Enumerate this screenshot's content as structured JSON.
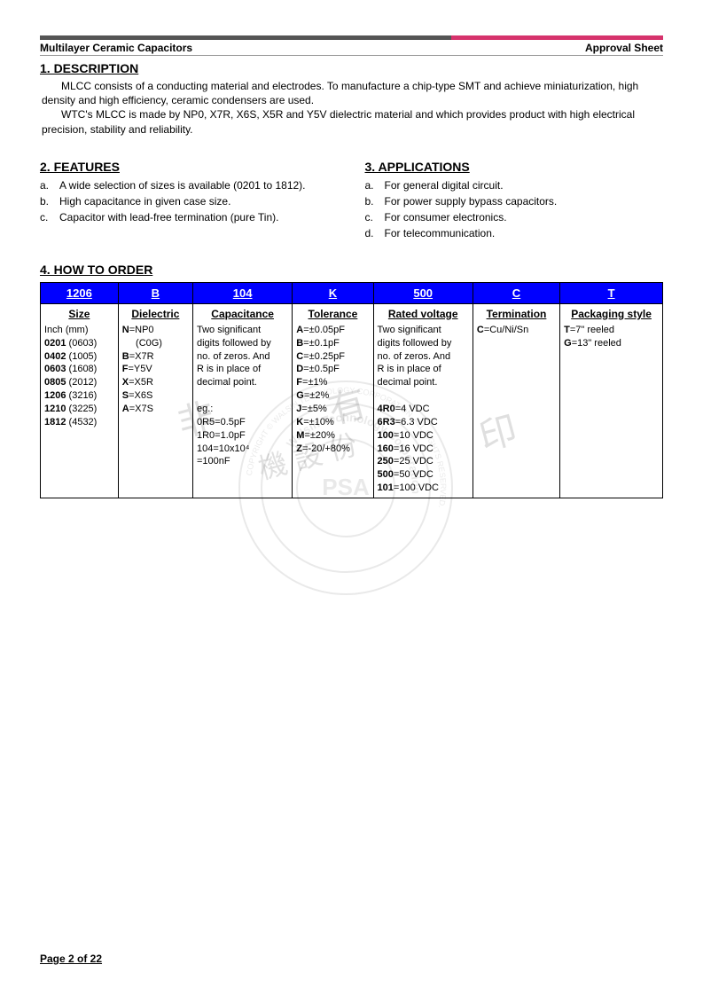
{
  "header": {
    "left": "Multilayer Ceramic Capacitors",
    "right": "Approval Sheet"
  },
  "sections": {
    "s1": {
      "title": "1. DESCRIPTION",
      "p1": "MLCC consists of a conducting material and electrodes. To manufacture a chip-type SMT and achieve miniaturization, high density and high efficiency, ceramic condensers are used.",
      "p2": "WTC's MLCC is made by NP0, X7R, X6S, X5R and Y5V dielectric material and which provides product with high electrical precision, stability and reliability."
    },
    "s2": {
      "title": "2. FEATURES",
      "items": [
        "A wide selection of sizes is available (0201 to 1812).",
        "High capacitance in given case size.",
        "Capacitor with lead-free termination (pure Tin)."
      ]
    },
    "s3": {
      "title": "3. APPLICATIONS",
      "items": [
        "For general digital circuit.",
        "For power supply bypass capacitors.",
        "For consumer electronics.",
        "For telecommunication."
      ]
    },
    "s4": {
      "title": "4. HOW TO ORDER"
    }
  },
  "order_table": {
    "header_bg": "#0000ff",
    "header_color": "#ffffff",
    "border_color": "#000000",
    "col_widths": [
      "12.5%",
      "12%",
      "16%",
      "13%",
      "16%",
      "14%",
      "16.5%"
    ],
    "headers": [
      "1206",
      "B",
      "104",
      "K",
      "500",
      "C",
      "T"
    ],
    "subheaders": [
      "Size",
      "Dielectric",
      "Capacitance",
      "Tolerance",
      "Rated voltage",
      "Termination",
      "Packaging style"
    ],
    "cols": {
      "size": {
        "lines": [
          {
            "pre": "Inch (mm)",
            "code": "",
            "post": ""
          },
          {
            "code": "0201",
            "post": " (0603)"
          },
          {
            "code": "0402",
            "post": " (1005)"
          },
          {
            "code": "0603",
            "post": " (1608)"
          },
          {
            "code": "0805",
            "post": " (2012)"
          },
          {
            "code": "1206",
            "post": " (3216)"
          },
          {
            "code": "1210",
            "post": " (3225)"
          },
          {
            "code": "1812",
            "post": " (4532)"
          }
        ]
      },
      "dielectric": {
        "lines": [
          {
            "code": "N",
            "post": "=NP0"
          },
          {
            "pre": "     (C0G)",
            "code": "",
            "post": ""
          },
          {
            "code": "B",
            "post": "=X7R"
          },
          {
            "code": "F",
            "post": "=Y5V"
          },
          {
            "code": "X",
            "post": "=X5R"
          },
          {
            "code": "S",
            "post": "=X6S"
          },
          {
            "code": "A",
            "post": "=X7S"
          }
        ]
      },
      "capacitance": {
        "text": [
          "Two significant",
          "digits followed by",
          "no. of zeros. And",
          "R is in place of",
          "decimal point.",
          "",
          "eg.:",
          "0R5=0.5pF",
          "1R0=1.0pF",
          "104=10x10⁴",
          "     =100nF"
        ]
      },
      "tolerance": {
        "lines": [
          {
            "code": "A",
            "post": "=±0.05pF"
          },
          {
            "code": "B",
            "post": "=±0.1pF"
          },
          {
            "code": "C",
            "post": "=±0.25pF"
          },
          {
            "code": "D",
            "post": "=±0.5pF"
          },
          {
            "code": "F",
            "post": "=±1%"
          },
          {
            "code": "G",
            "post": "=±2%"
          },
          {
            "code": "J",
            "post": "=±5%"
          },
          {
            "code": "K",
            "post": "=±10%"
          },
          {
            "code": "M",
            "post": "=±20%"
          },
          {
            "code": "Z",
            "post": "=-20/+80%"
          }
        ]
      },
      "voltage": {
        "text": [
          "Two significant",
          "digits followed by",
          "no. of zeros. And",
          "R is in place of",
          "decimal point.",
          ""
        ],
        "lines": [
          {
            "code": "4R0",
            "post": "=4 VDC"
          },
          {
            "code": "6R3",
            "post": "=6.3 VDC"
          },
          {
            "code": "100",
            "post": "=10 VDC"
          },
          {
            "code": "160",
            "post": "=16 VDC"
          },
          {
            "code": "250",
            "post": "=25 VDC"
          },
          {
            "code": "500",
            "post": "=50 VDC"
          },
          {
            "code": "101",
            "post": "=100 VDC"
          }
        ]
      },
      "termination": {
        "lines": [
          {
            "code": "C",
            "post": "=Cu/Ni/Sn"
          }
        ]
      },
      "packaging": {
        "lines": [
          {
            "code": "T",
            "post": "=7\" reeled"
          },
          {
            "code": "G",
            "post": "=13\" reeled"
          }
        ]
      }
    }
  },
  "footer": "Page 2 of 22",
  "watermark": {
    "chars": "非賣品 僅供參考 水印",
    "ring_outer": "COPYRIGHT © WALSIN TECHNOLOGY CORPORATION. ALL RIGHTS RESERVED.",
    "ring_inner": "Walsin Technology Corporation",
    "center": "PSA"
  }
}
